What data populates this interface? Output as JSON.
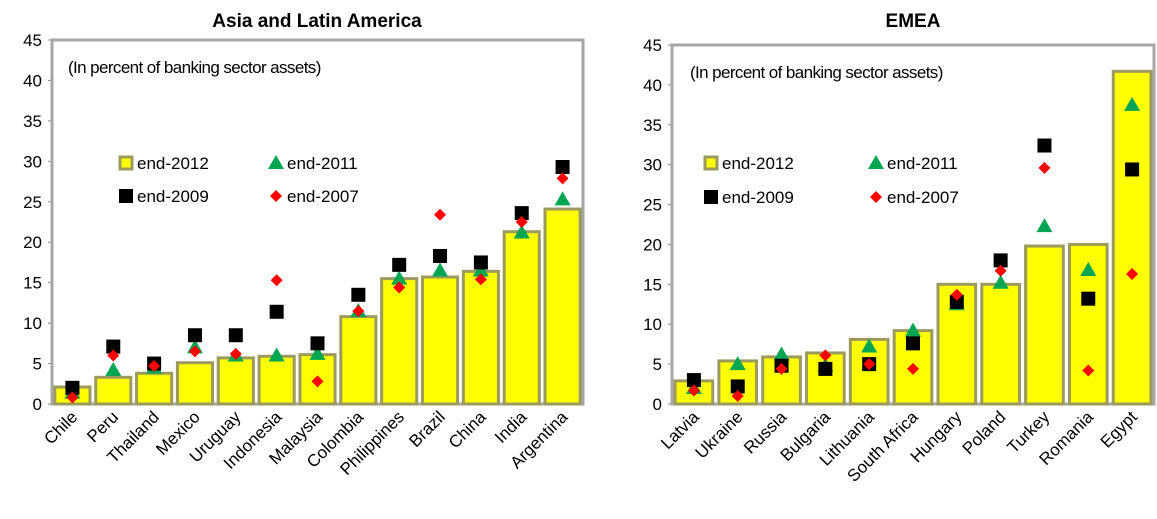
{
  "chart_data": [
    {
      "type": "bar",
      "title": "Asia and Latin America",
      "annotation": "(In percent of banking sector assets)",
      "categories": [
        "Chile",
        "Peru",
        "Thailand",
        "Mexico",
        "Uruguay",
        "Indonesia",
        "Malaysia",
        "Colombia",
        "Philippines",
        "Brazil",
        "China",
        "India",
        "Argentina"
      ],
      "series": [
        {
          "name": "end-2012",
          "marker": "bar",
          "color": "#ffff00",
          "values": [
            2.1,
            3.3,
            3.8,
            5.1,
            5.7,
            5.9,
            6.1,
            10.8,
            15.5,
            15.7,
            16.4,
            21.3,
            24.1
          ]
        },
        {
          "name": "end-2011",
          "marker": "triangle",
          "color": "#00a651",
          "values": [
            1.4,
            4.2,
            4.5,
            7.0,
            6.0,
            6.0,
            6.2,
            11.5,
            15.5,
            16.5,
            16.5,
            21.2,
            25.3
          ]
        },
        {
          "name": "end-2009",
          "marker": "square",
          "color": "#000000",
          "values": [
            2.0,
            7.1,
            5.0,
            8.5,
            8.5,
            11.4,
            7.5,
            13.5,
            17.2,
            18.3,
            17.5,
            23.6,
            29.3
          ]
        },
        {
          "name": "end-2007",
          "marker": "diamond",
          "color": "#ff0000",
          "values": [
            0.8,
            6.0,
            4.7,
            6.5,
            6.2,
            15.3,
            2.8,
            11.5,
            14.4,
            23.4,
            15.4,
            22.5,
            27.9
          ]
        }
      ],
      "ylim": [
        0,
        45
      ],
      "yticks": [
        0,
        5,
        10,
        15,
        20,
        25,
        30,
        35,
        40,
        45
      ]
    },
    {
      "type": "bar",
      "title": "EMEA",
      "annotation": "(In percent of banking sector assets)",
      "categories": [
        "Latvia",
        "Ukraine",
        "Russia",
        "Bulgaria",
        "Lithuania",
        "South Africa",
        "Hungary",
        "Poland",
        "Turkey",
        "Romania",
        "Egypt"
      ],
      "series": [
        {
          "name": "end-2012",
          "marker": "bar",
          "color": "#ffff00",
          "values": [
            2.9,
            5.4,
            5.9,
            6.4,
            8.1,
            9.2,
            15.0,
            15.0,
            19.8,
            20.0,
            41.7
          ]
        },
        {
          "name": "end-2011",
          "marker": "triangle",
          "color": "#00a651",
          "values": [
            2.0,
            5.0,
            6.2,
            4.8,
            7.2,
            9.2,
            12.5,
            15.2,
            22.3,
            16.8,
            37.5
          ]
        },
        {
          "name": "end-2009",
          "marker": "square",
          "color": "#000000",
          "values": [
            3.0,
            2.2,
            4.8,
            4.4,
            5.0,
            7.6,
            12.8,
            18.0,
            32.4,
            13.2,
            29.4
          ]
        },
        {
          "name": "end-2007",
          "marker": "diamond",
          "color": "#ff0000",
          "values": [
            1.7,
            1.0,
            4.4,
            6.1,
            5.0,
            4.4,
            13.7,
            16.7,
            29.6,
            4.2,
            16.3
          ]
        }
      ],
      "ylim": [
        0,
        45
      ],
      "yticks": [
        0,
        5,
        10,
        15,
        20,
        25,
        30,
        35,
        40,
        45
      ]
    }
  ]
}
